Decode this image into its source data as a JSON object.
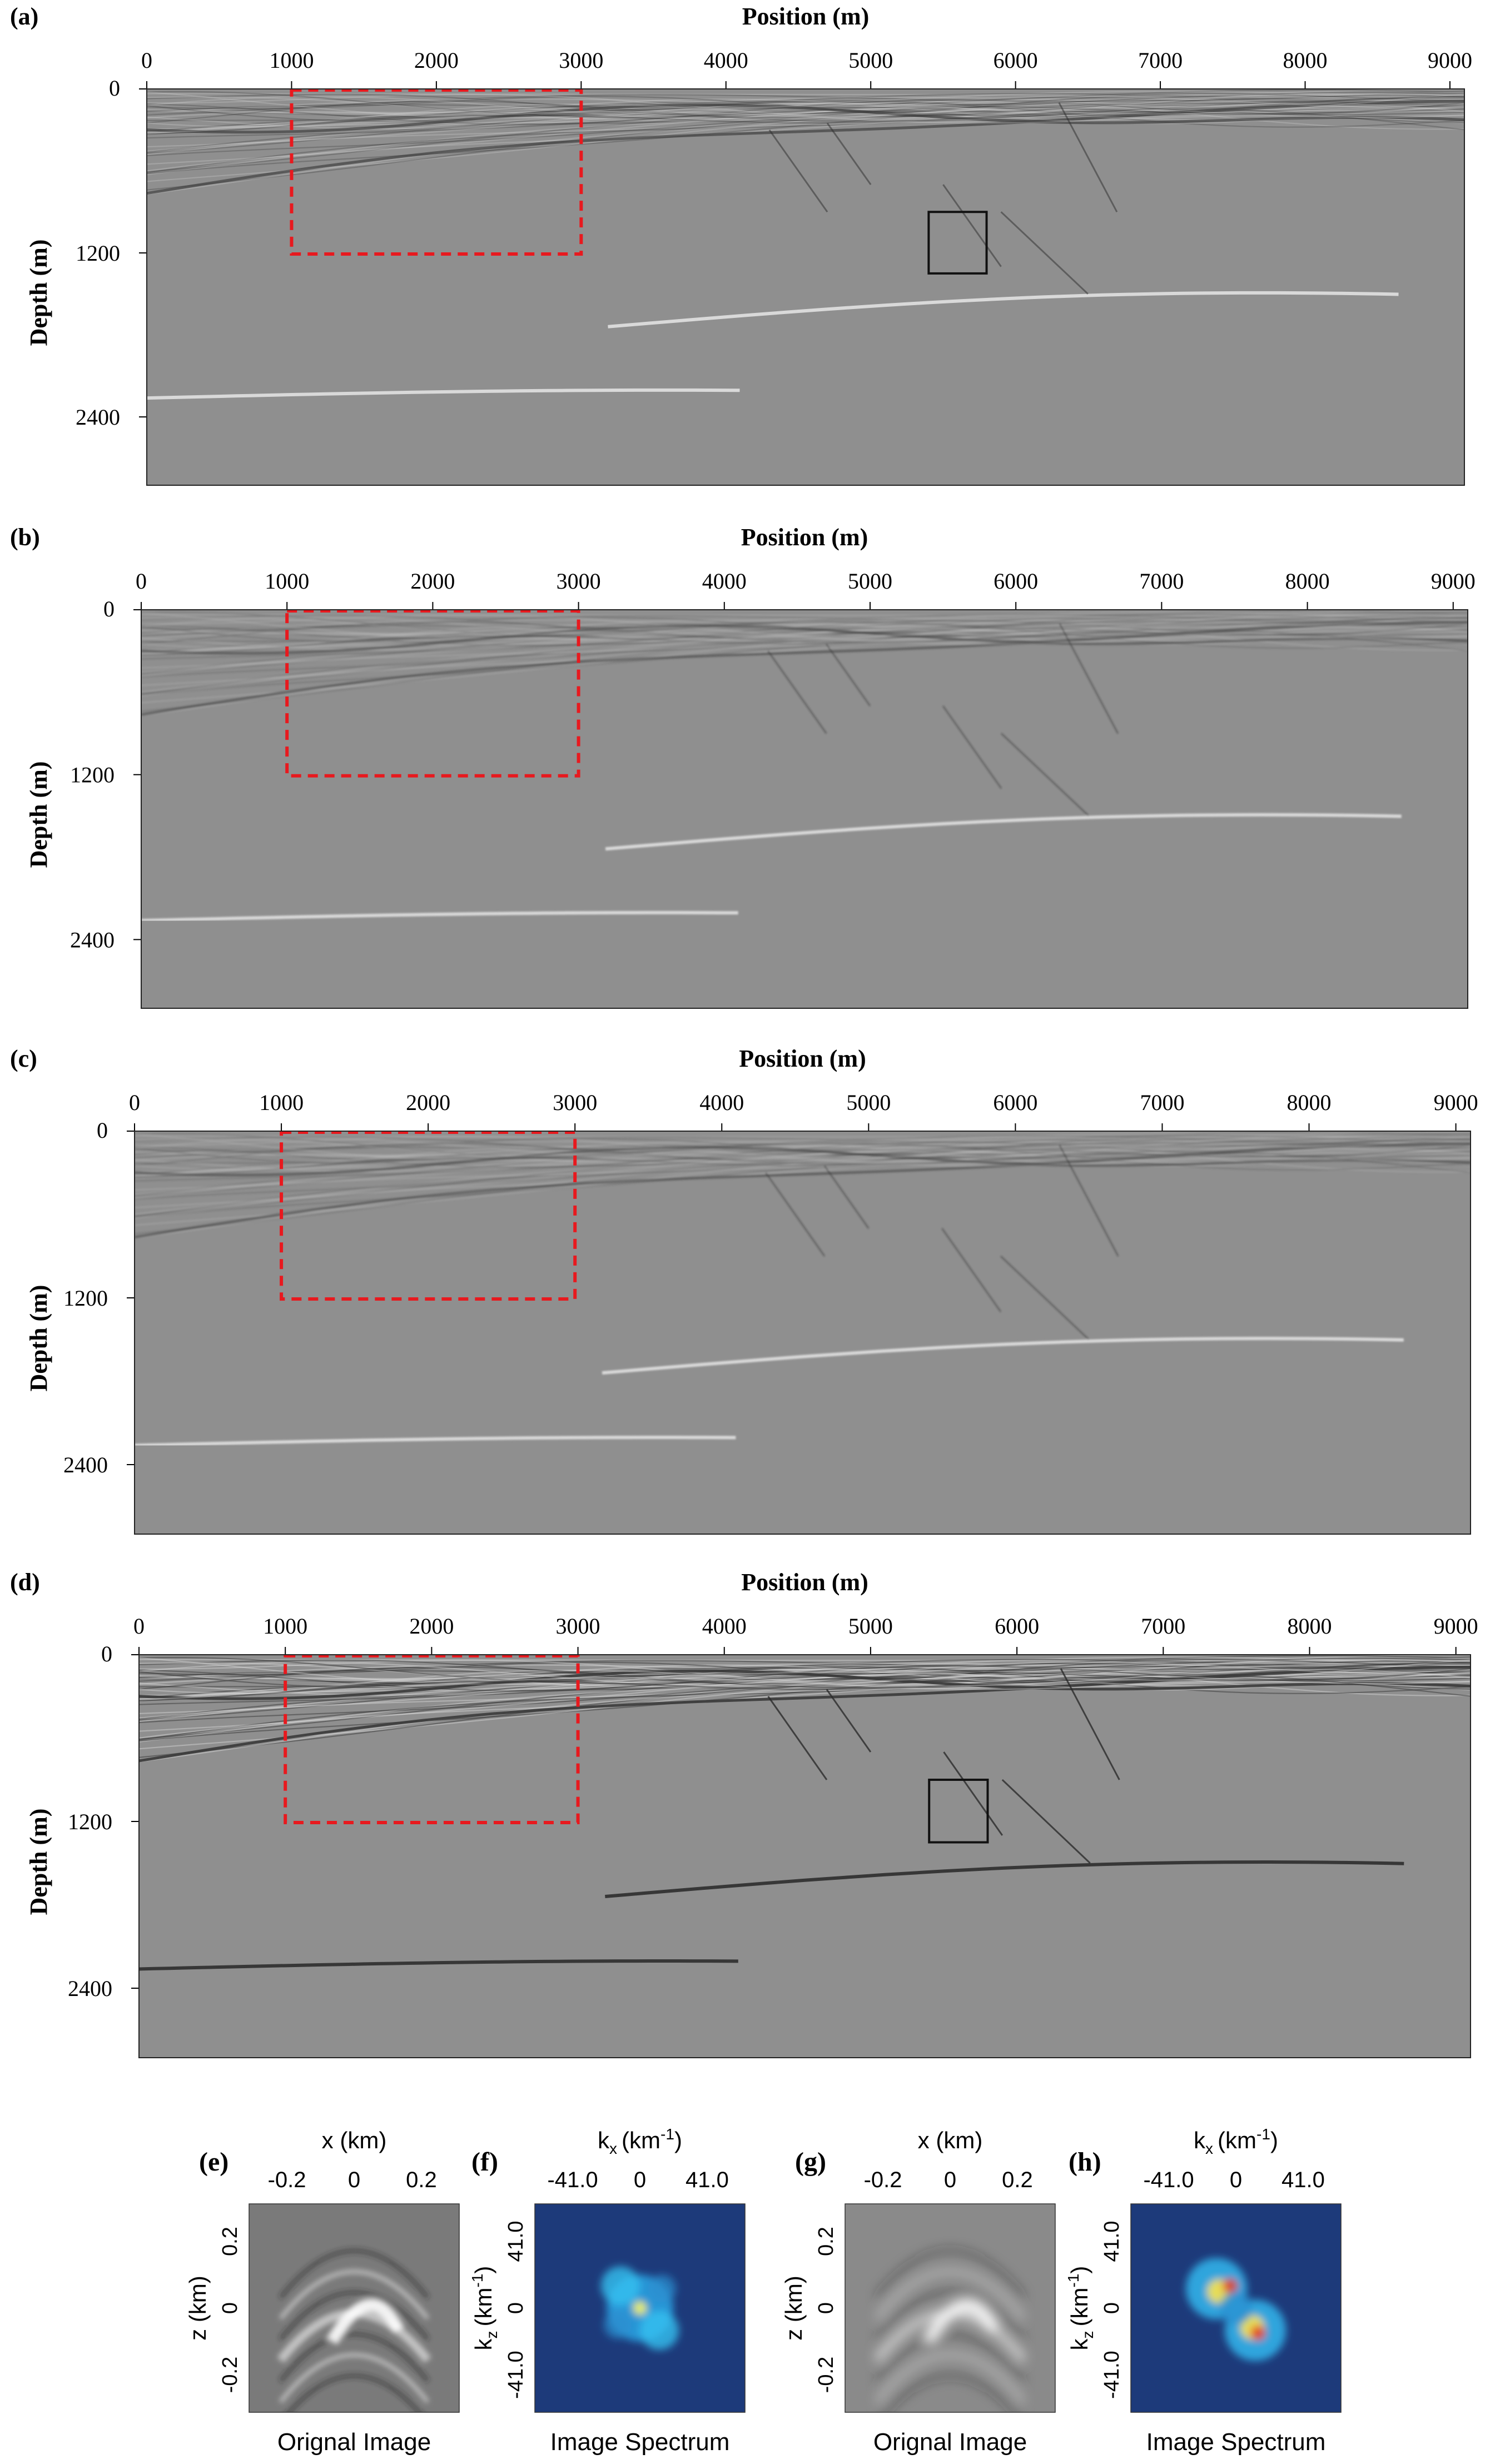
{
  "panels": [
    {
      "id": "a",
      "label": "(a)",
      "xlabel": "Position (m)",
      "ylabel": "Depth (m)",
      "black_box": true,
      "variant": "raw"
    },
    {
      "id": "b",
      "label": "(b)",
      "xlabel": "Position (m)",
      "ylabel": "Depth (m)",
      "black_box": false,
      "variant": "smooth"
    },
    {
      "id": "c",
      "label": "(c)",
      "xlabel": "Position (m)",
      "ylabel": "Depth (m)",
      "black_box": false,
      "variant": "smooth"
    },
    {
      "id": "d",
      "label": "(d)",
      "xlabel": "Position (m)",
      "ylabel": "Depth (m)",
      "black_box": true,
      "variant": "sharp"
    }
  ],
  "axes": {
    "x_ticks": [
      "0",
      "1000",
      "2000",
      "3000",
      "4000",
      "5000",
      "6000",
      "7000",
      "8000",
      "9000"
    ],
    "y_ticks": [
      "0",
      "1200",
      "2400"
    ],
    "x_range": [
      0,
      9100
    ],
    "y_range": [
      0,
      2900
    ]
  },
  "red_box": {
    "x": [
      1000,
      3000
    ],
    "y": [
      0,
      1200
    ],
    "color": "#e8191e"
  },
  "black_box": {
    "x": [
      5400,
      5800
    ],
    "y": [
      900,
      1350
    ]
  },
  "insets": [
    {
      "label": "(e)",
      "type": "image",
      "xlabel": "x (km)",
      "ylabel": "z (km)",
      "x_ticks": [
        "-0.2",
        "0",
        "0.2"
      ],
      "y_ticks": [
        "0.2",
        "0",
        "-0.2"
      ],
      "caption": "Orignal Image"
    },
    {
      "label": "(f)",
      "type": "spectrum",
      "xlabel": "k",
      "xlabel_sub": "x",
      "xlabel_unit": "(km",
      "xlabel_sup": "-1",
      "ylabel": "k",
      "ylabel_sub": "z",
      "ylabel_unit": "(km",
      "ylabel_sup": "-1",
      "x_ticks": [
        "-41.0",
        "0",
        "41.0"
      ],
      "y_ticks": [
        "41.0",
        "0",
        "-41.0"
      ],
      "caption": "Image Spectrum"
    },
    {
      "label": "(g)",
      "type": "image",
      "xlabel": "x (km)",
      "ylabel": "z (km)",
      "x_ticks": [
        "-0.2",
        "0",
        "0.2"
      ],
      "y_ticks": [
        "0.2",
        "0",
        "-0.2"
      ],
      "caption": "Orignal Image"
    },
    {
      "label": "(h)",
      "type": "spectrum",
      "xlabel": "k",
      "xlabel_sub": "x",
      "xlabel_unit": "(km",
      "xlabel_sup": "-1",
      "ylabel": "k",
      "ylabel_sub": "z",
      "ylabel_unit": "(km",
      "ylabel_sup": "-1",
      "x_ticks": [
        "-41.0",
        "0",
        "41.0"
      ],
      "y_ticks": [
        "41.0",
        "0",
        "-41.0"
      ],
      "caption": "Image Spectrum"
    }
  ],
  "colors": {
    "seismic_bg": "#8f8f8f",
    "spectrum_bg": "#1d3a7a",
    "red_box": "#e8191e",
    "black_box": "#111111"
  }
}
